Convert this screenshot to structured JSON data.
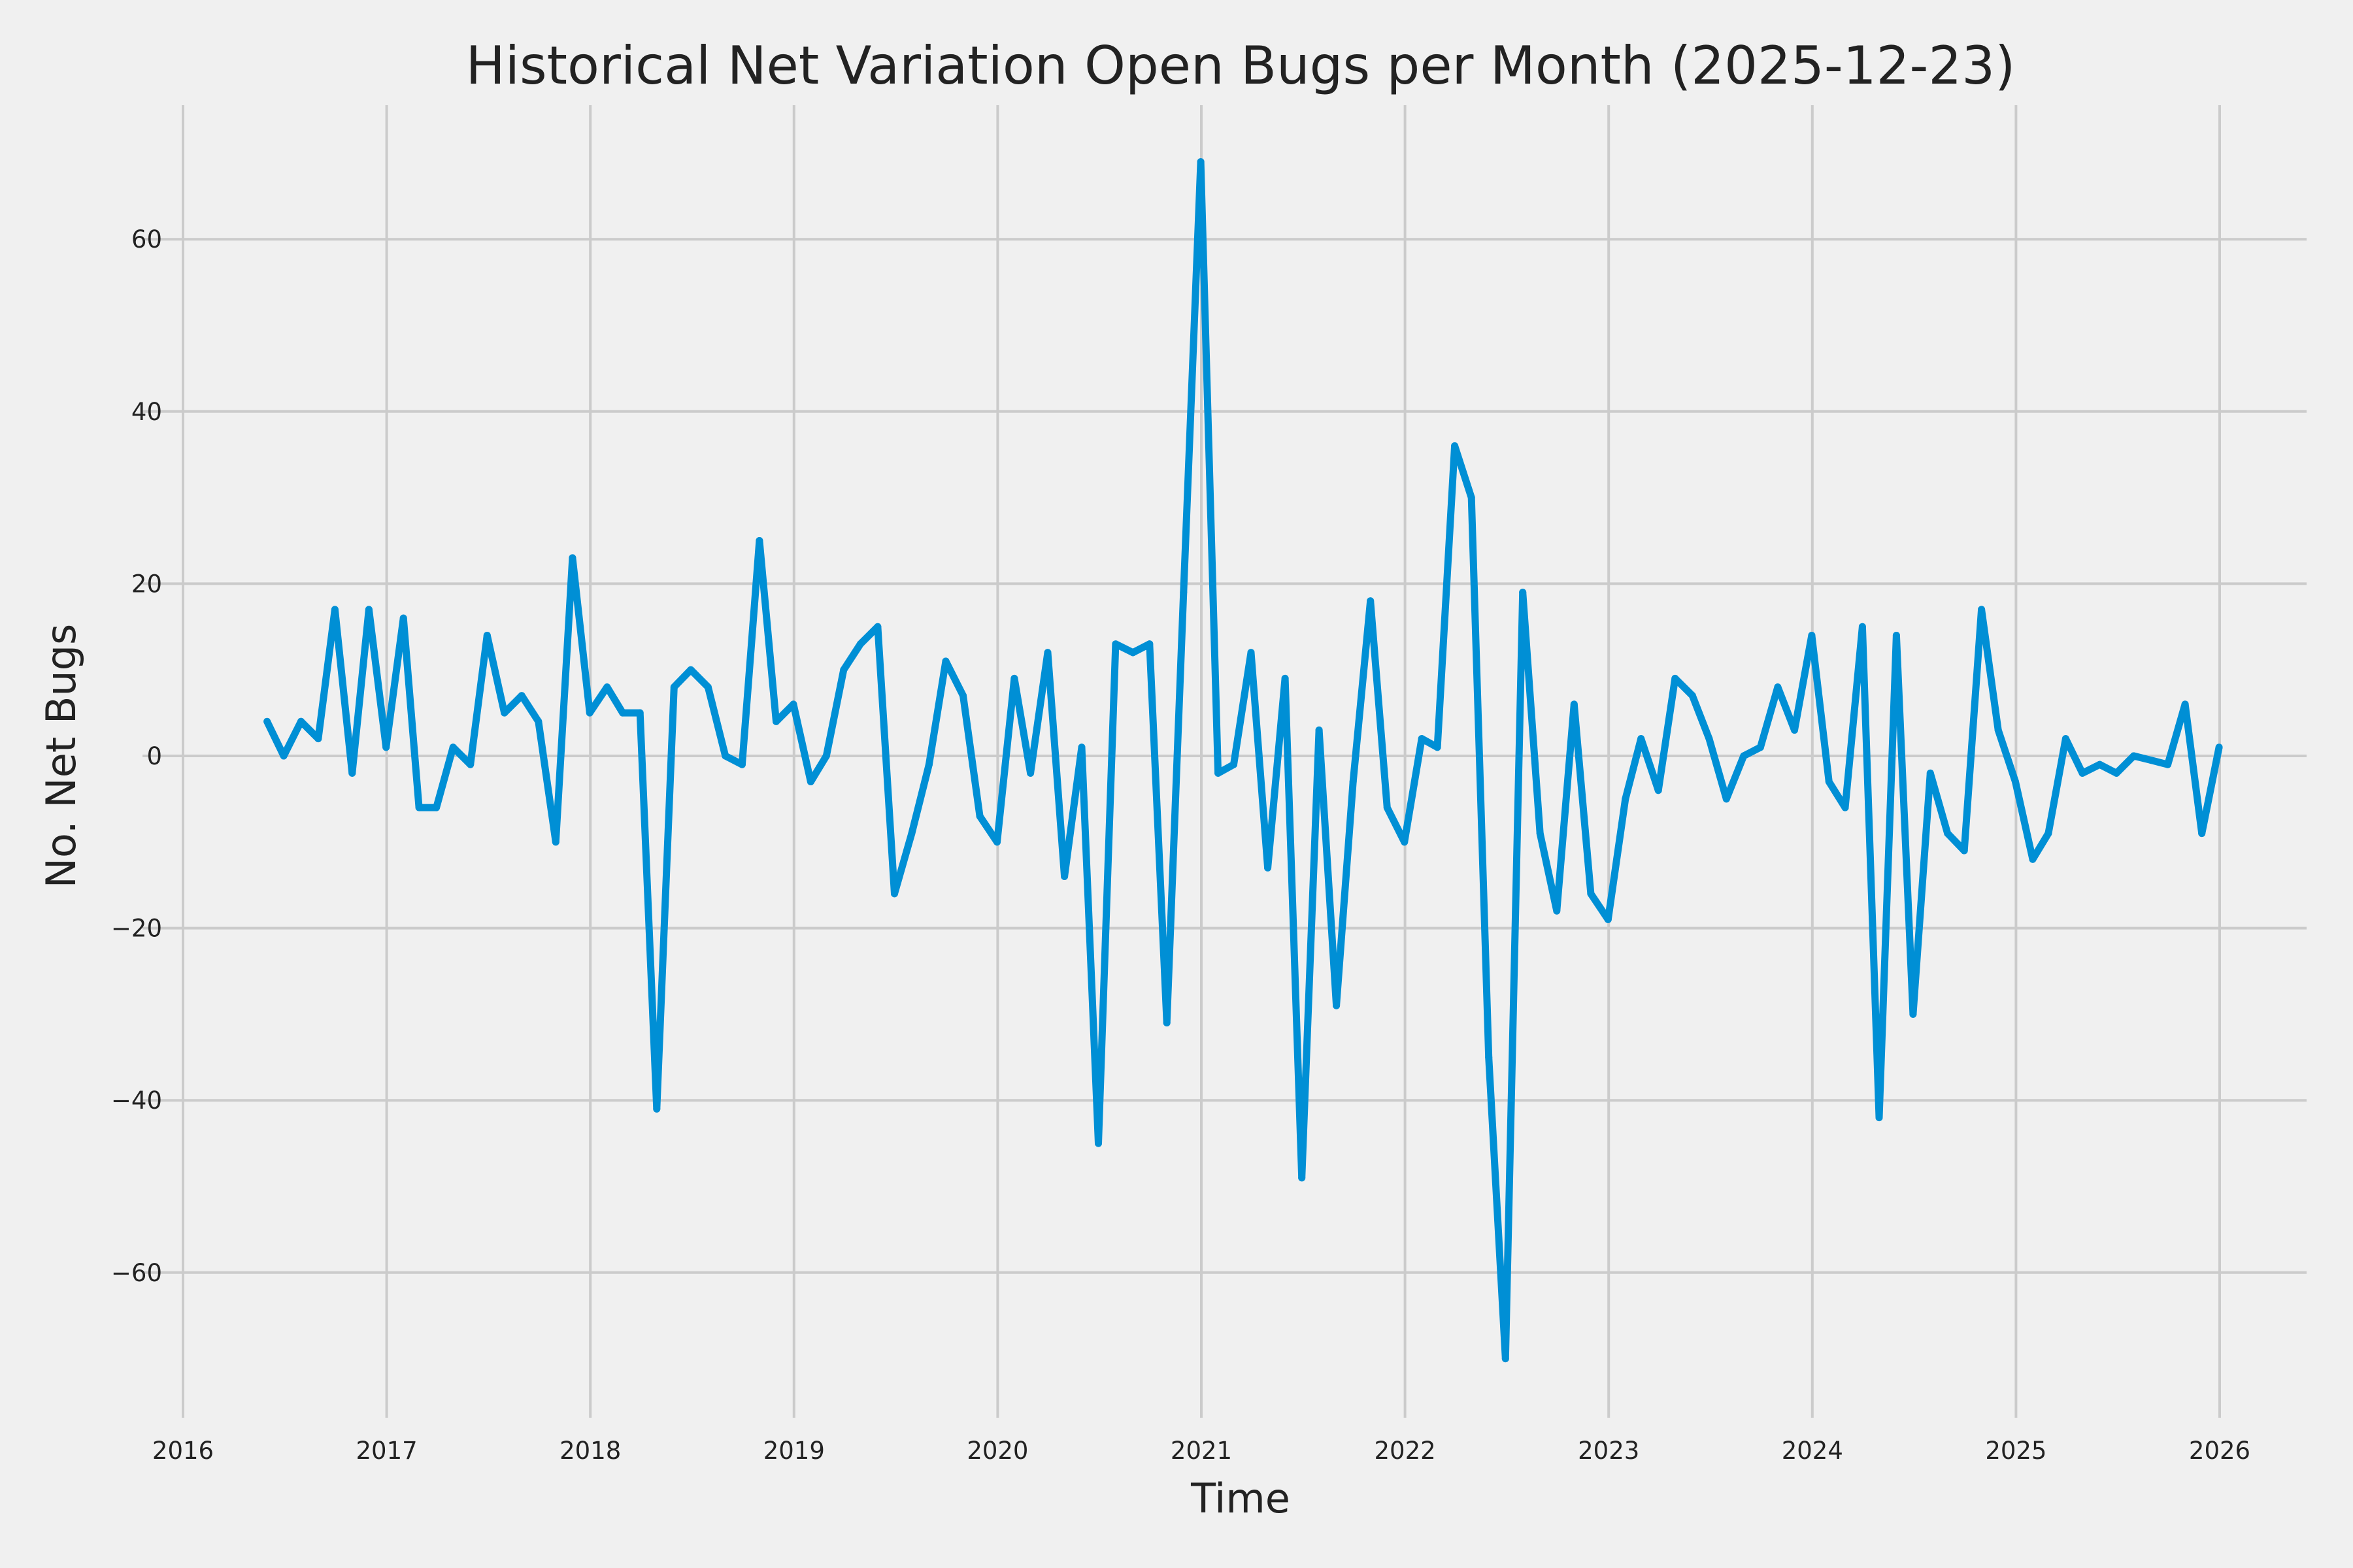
{
  "chart_data": {
    "type": "line",
    "title": "Historical Net Variation Open Bugs per Month (2025-12-23)",
    "xlabel": "Time",
    "ylabel": "No. Net Bugs",
    "xlim": [
      2016,
      2026.5
    ],
    "ylim": [
      -75,
      75
    ],
    "x_ticks": [
      "2016",
      "2017",
      "2018",
      "2019",
      "2020",
      "2021",
      "2022",
      "2023",
      "2024",
      "2025",
      "2026"
    ],
    "y_ticks": [
      -60,
      -40,
      -20,
      0,
      20,
      40,
      60
    ],
    "y_tick_labels": [
      "−60",
      "−40",
      "−20",
      "0",
      "20",
      "40",
      "60"
    ],
    "grid": true,
    "colors": {
      "background": "#f0f0f0",
      "grid": "#cbcbcb",
      "line": "#008fd5"
    },
    "x": [
      "2016-05",
      "2016-06",
      "2016-07",
      "2016-08",
      "2016-09",
      "2016-10",
      "2016-11",
      "2016-12",
      "2017-01",
      "2017-02",
      "2017-03",
      "2017-04",
      "2017-05",
      "2017-06",
      "2017-07",
      "2017-08",
      "2017-09",
      "2017-10",
      "2017-11",
      "2017-12",
      "2018-01",
      "2018-02",
      "2018-03",
      "2018-04",
      "2018-05",
      "2018-06",
      "2018-07",
      "2018-08",
      "2018-09",
      "2018-10",
      "2018-11",
      "2018-12",
      "2019-01",
      "2019-02",
      "2019-03",
      "2019-04",
      "2019-05",
      "2019-06",
      "2019-07",
      "2019-08",
      "2019-09",
      "2019-10",
      "2019-11",
      "2019-12",
      "2020-01",
      "2020-02",
      "2020-03",
      "2020-04",
      "2020-05",
      "2020-06",
      "2020-07",
      "2020-08",
      "2020-09",
      "2020-10",
      "2020-11",
      "2020-12",
      "2021-01",
      "2021-02",
      "2021-03",
      "2021-04",
      "2021-05",
      "2021-06",
      "2021-07",
      "2021-08",
      "2021-09",
      "2021-10",
      "2021-11",
      "2021-12",
      "2022-01",
      "2022-02",
      "2022-03",
      "2022-04",
      "2022-05",
      "2022-06",
      "2022-07",
      "2022-08",
      "2022-09",
      "2022-10",
      "2022-11",
      "2022-12",
      "2023-01",
      "2023-02",
      "2023-03",
      "2023-04",
      "2023-05",
      "2023-06",
      "2023-07",
      "2023-08",
      "2023-09",
      "2023-10",
      "2023-11",
      "2023-12",
      "2024-01",
      "2024-02",
      "2024-03",
      "2024-04",
      "2024-05",
      "2024-06",
      "2024-07",
      "2024-08",
      "2024-09",
      "2024-10",
      "2024-11",
      "2024-12",
      "2025-01",
      "2025-02",
      "2025-03",
      "2025-04",
      "2025-05",
      "2025-06",
      "2025-07",
      "2025-08",
      "2025-09",
      "2025-10",
      "2025-11",
      "2025-12"
    ],
    "series": [
      {
        "values": [
          4,
          0,
          4,
          2,
          17,
          -2,
          17,
          1,
          16,
          -6,
          -6,
          1,
          -1,
          14,
          5,
          7,
          4,
          -10,
          23,
          5,
          8,
          5,
          5,
          -41,
          8,
          10,
          8,
          0,
          -1,
          25,
          4,
          6,
          -3,
          0,
          10,
          13,
          15,
          -16,
          -9,
          -1,
          11,
          7,
          -7,
          -10,
          9,
          -2,
          12,
          -14,
          1,
          -45,
          13,
          12,
          13,
          -31,
          19,
          69,
          -2,
          -1,
          12,
          -13,
          9,
          -49,
          3,
          -29,
          -3,
          18,
          -6,
          -10,
          2,
          1,
          36,
          30,
          -35,
          -70,
          19,
          -9,
          -18,
          6,
          -16,
          -19,
          -5,
          2,
          -4,
          9,
          7,
          2,
          -5,
          0,
          1,
          8,
          3,
          14,
          -3,
          -6,
          15,
          -42,
          14,
          -30,
          -2,
          -9,
          -11,
          17,
          3,
          -3,
          -12,
          -9,
          2,
          -2,
          -1,
          -2,
          0,
          -0.5,
          -1,
          6,
          -9,
          1
        ]
      }
    ]
  }
}
